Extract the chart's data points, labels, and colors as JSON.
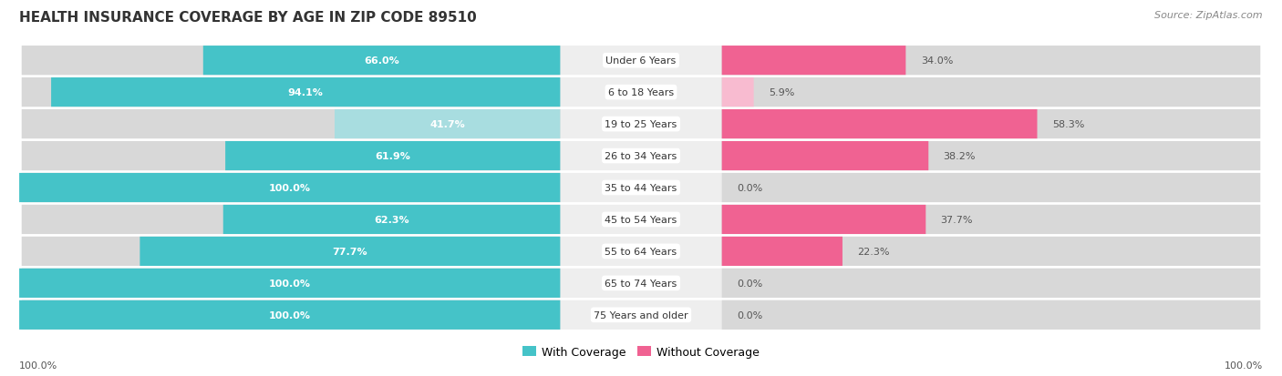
{
  "title": "HEALTH INSURANCE COVERAGE BY AGE IN ZIP CODE 89510",
  "source": "Source: ZipAtlas.com",
  "categories": [
    "Under 6 Years",
    "6 to 18 Years",
    "19 to 25 Years",
    "26 to 34 Years",
    "35 to 44 Years",
    "45 to 54 Years",
    "55 to 64 Years",
    "65 to 74 Years",
    "75 Years and older"
  ],
  "with_coverage": [
    66.0,
    94.1,
    41.7,
    61.9,
    100.0,
    62.3,
    77.7,
    100.0,
    100.0
  ],
  "without_coverage": [
    34.0,
    5.9,
    58.3,
    38.2,
    0.0,
    37.7,
    22.3,
    0.0,
    0.0
  ],
  "color_with": "#45C3C8",
  "color_with_light": "#A8DDE0",
  "color_without": "#F06292",
  "color_without_light": "#F8BBD0",
  "bg_color": "#ffffff",
  "row_bg": "#eeeeee",
  "bar_area_bg": "#e0e0e0",
  "legend_with": "With Coverage",
  "legend_without": "Without Coverage",
  "axis_label_left": "100.0%",
  "axis_label_right": "100.0%",
  "title_fontsize": 11,
  "source_fontsize": 8,
  "label_fontsize": 8,
  "cat_fontsize": 8
}
